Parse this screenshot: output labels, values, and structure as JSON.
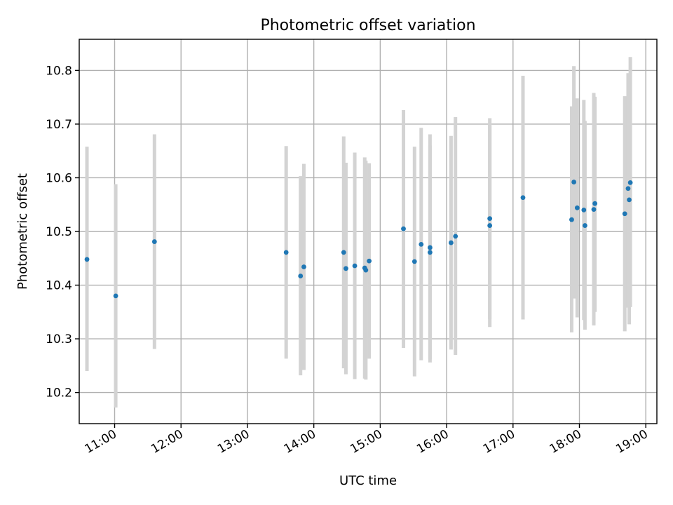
{
  "chart_data": {
    "type": "scatter",
    "title": "Photometric offset variation",
    "xlabel": "UTC time",
    "ylabel": "Photometric offset",
    "xlim": [
      "10:28",
      "19:10"
    ],
    "ylim": [
      10.142,
      10.858
    ],
    "x_ticks": [
      "11:00",
      "12:00",
      "13:00",
      "14:00",
      "15:00",
      "16:00",
      "17:00",
      "18:00",
      "19:00"
    ],
    "y_ticks": [
      "10.2",
      "10.3",
      "10.4",
      "10.5",
      "10.6",
      "10.7",
      "10.8"
    ],
    "grid": true,
    "error_bar_color": "#d3d3d3",
    "marker_color": "#1f77b4",
    "series": [
      {
        "points": [
          {
            "x": "10:35",
            "y": 10.448,
            "low": 10.24,
            "high": 10.658
          },
          {
            "x": "11:01",
            "y": 10.38,
            "low": 10.172,
            "high": 10.588
          },
          {
            "x": "11:36",
            "y": 10.481,
            "low": 10.281,
            "high": 10.681
          },
          {
            "x": "13:35",
            "y": 10.461,
            "low": 10.263,
            "high": 10.659
          },
          {
            "x": "13:48",
            "y": 10.417,
            "low": 10.232,
            "high": 10.603
          },
          {
            "x": "13:51",
            "y": 10.434,
            "low": 10.242,
            "high": 10.626
          },
          {
            "x": "14:27",
            "y": 10.461,
            "low": 10.245,
            "high": 10.677
          },
          {
            "x": "14:29",
            "y": 10.431,
            "low": 10.234,
            "high": 10.628
          },
          {
            "x": "14:37",
            "y": 10.436,
            "low": 10.225,
            "high": 10.647
          },
          {
            "x": "14:46",
            "y": 10.432,
            "low": 10.226,
            "high": 10.638
          },
          {
            "x": "14:47",
            "y": 10.428,
            "low": 10.224,
            "high": 10.632
          },
          {
            "x": "14:50",
            "y": 10.445,
            "low": 10.263,
            "high": 10.627
          },
          {
            "x": "15:21",
            "y": 10.505,
            "low": 10.283,
            "high": 10.726
          },
          {
            "x": "15:31",
            "y": 10.444,
            "low": 10.23,
            "high": 10.658
          },
          {
            "x": "15:37",
            "y": 10.476,
            "low": 10.26,
            "high": 10.693
          },
          {
            "x": "15:45",
            "y": 10.47,
            "low": 10.256,
            "high": 10.681
          },
          {
            "x": "15:45",
            "y": 10.461,
            "low": 10.262,
            "high": 10.66
          },
          {
            "x": "16:04",
            "y": 10.479,
            "low": 10.28,
            "high": 10.678
          },
          {
            "x": "16:08",
            "y": 10.491,
            "low": 10.27,
            "high": 10.713
          },
          {
            "x": "16:39",
            "y": 10.524,
            "low": 10.337,
            "high": 10.711
          },
          {
            "x": "16:39",
            "y": 10.511,
            "low": 10.322,
            "high": 10.7
          },
          {
            "x": "17:09",
            "y": 10.563,
            "low": 10.336,
            "high": 10.79
          },
          {
            "x": "17:53",
            "y": 10.522,
            "low": 10.312,
            "high": 10.733
          },
          {
            "x": "17:55",
            "y": 10.592,
            "low": 10.375,
            "high": 10.808
          },
          {
            "x": "17:58",
            "y": 10.544,
            "low": 10.34,
            "high": 10.748
          },
          {
            "x": "18:04",
            "y": 10.54,
            "low": 10.335,
            "high": 10.745
          },
          {
            "x": "18:05",
            "y": 10.511,
            "low": 10.317,
            "high": 10.706
          },
          {
            "x": "18:13",
            "y": 10.541,
            "low": 10.325,
            "high": 10.758
          },
          {
            "x": "18:14",
            "y": 10.552,
            "low": 10.35,
            "high": 10.751
          },
          {
            "x": "18:41",
            "y": 10.533,
            "low": 10.314,
            "high": 10.752
          },
          {
            "x": "18:44",
            "y": 10.58,
            "low": 10.358,
            "high": 10.795
          },
          {
            "x": "18:45",
            "y": 10.559,
            "low": 10.327,
            "high": 10.79
          },
          {
            "x": "18:46",
            "y": 10.591,
            "low": 10.359,
            "high": 10.825
          }
        ]
      }
    ]
  }
}
